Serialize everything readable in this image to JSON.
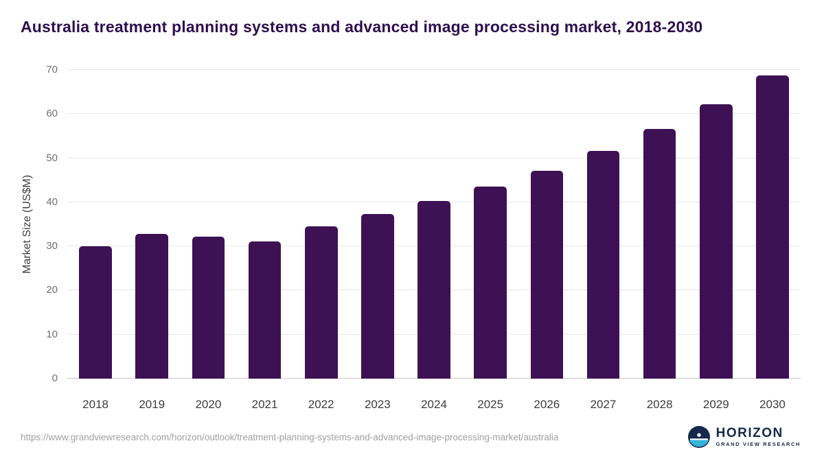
{
  "title": "Australia treatment planning systems and advanced image processing market, 2018-2030",
  "chart_data": {
    "type": "bar",
    "categories": [
      "2018",
      "2019",
      "2020",
      "2021",
      "2022",
      "2023",
      "2024",
      "2025",
      "2026",
      "2027",
      "2028",
      "2029",
      "2030"
    ],
    "values": [
      30.0,
      32.8,
      32.2,
      31.1,
      34.6,
      37.4,
      40.3,
      43.5,
      47.2,
      51.7,
      56.7,
      62.3,
      68.7
    ],
    "title": "Australia treatment planning systems and advanced image processing market, 2018-2030",
    "xlabel": "",
    "ylabel": "Market Size (US$M)",
    "ylim": [
      0,
      70
    ],
    "ytick_step": 10,
    "grid": true,
    "legend": "none",
    "bar_color": "#3d1154"
  },
  "footer": {
    "source_url": "https://www.grandviewresearch.com/horizon/outlook/treatment-planning-systems-and-advanced-image-processing-market/australia",
    "logo": {
      "brand": "HORIZON",
      "sub": "GRAND VIEW RESEARCH"
    }
  },
  "colors": {
    "title_text": "#2e0e4e",
    "bar": "#3d1154",
    "gridline": "#e8e8e8",
    "axis_line": "#c9c9c9",
    "tick_text": "#6f6f6f",
    "x_label_text": "#3c3c3c",
    "url_text": "#9f9f9f",
    "logo_navy": "#16294d",
    "logo_cyan": "#35b4dc"
  }
}
